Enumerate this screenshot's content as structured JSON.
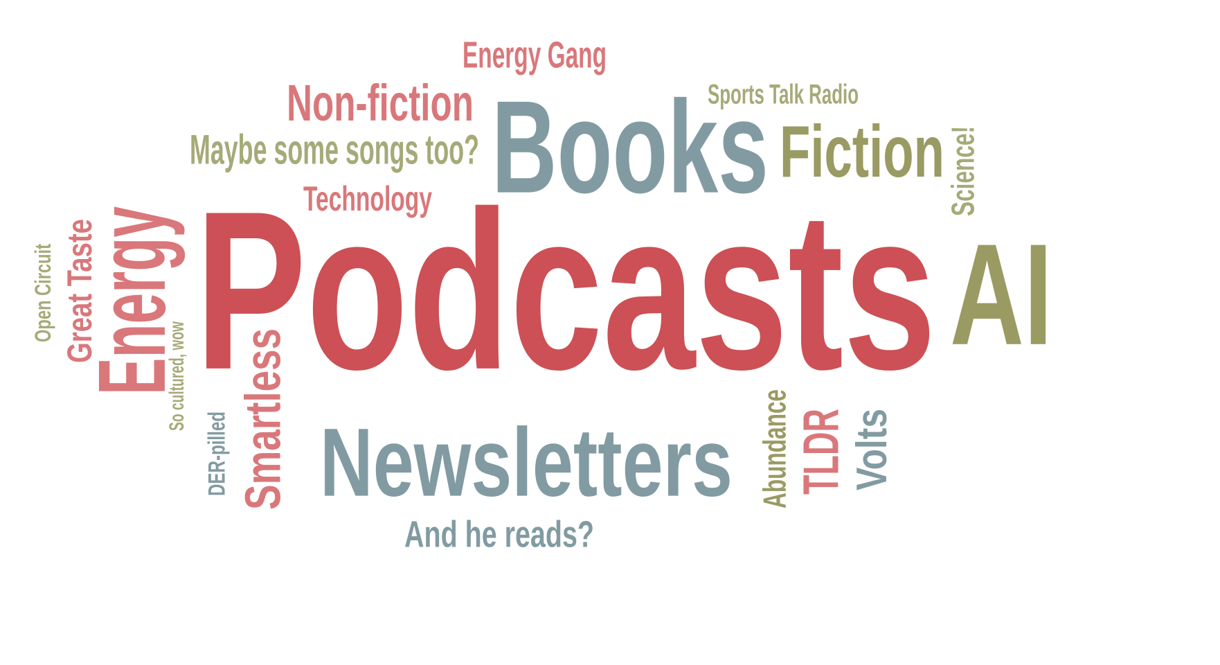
{
  "colors": {
    "red": "#cc5055",
    "pink": "#d9777a",
    "slate": "#829ba2",
    "olive": "#9a9a63",
    "olive_light": "#a6aa78"
  },
  "words": {
    "podcasts": "Podcasts",
    "books": "Books",
    "newsletters": "Newsletters",
    "ai": "AI",
    "fiction": "Fiction",
    "non_fiction": "Non-fiction",
    "energy": "Energy",
    "smartless": "Smartless",
    "tldr": "TLDR",
    "volts": "Volts",
    "abundance": "Abundance",
    "science": "Science!",
    "technology": "Technology",
    "maybe_songs": "Maybe some songs too?",
    "energy_gang": "Energy Gang",
    "sports_talk": "Sports Talk Radio",
    "great_taste": "Great Taste",
    "open_circuit": "Open Circuit",
    "so_cultured": "So cultured, wow",
    "der_pilled": "DER-pilled",
    "and_he_reads": "And he reads?"
  }
}
